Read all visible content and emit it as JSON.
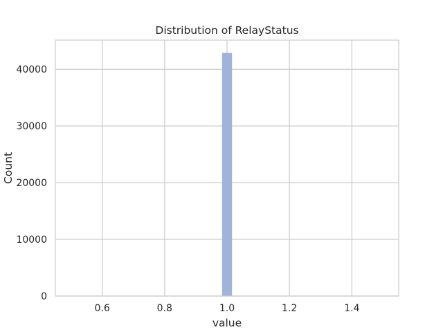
{
  "chart_data": {
    "type": "bar",
    "title": "Distribution of RelayStatus",
    "xlabel": "value",
    "ylabel": "Count",
    "xlim": [
      0.45,
      1.55
    ],
    "ylim": [
      0,
      45150
    ],
    "x_ticks": [
      "0.6",
      "0.8",
      "1.0",
      "1.2",
      "1.4"
    ],
    "x_tick_values": [
      0.6,
      0.8,
      1.0,
      1.2,
      1.4
    ],
    "y_ticks": [
      "0",
      "10000",
      "20000",
      "30000",
      "40000"
    ],
    "y_tick_values": [
      0,
      10000,
      20000,
      30000,
      40000
    ],
    "bins": [
      {
        "x0": 0.984,
        "x1": 1.016,
        "count": 42900
      }
    ],
    "grid": true,
    "bar_color": "#a1b4d8",
    "grid_color": "#cccccc",
    "frame_color": "#cccccc"
  }
}
